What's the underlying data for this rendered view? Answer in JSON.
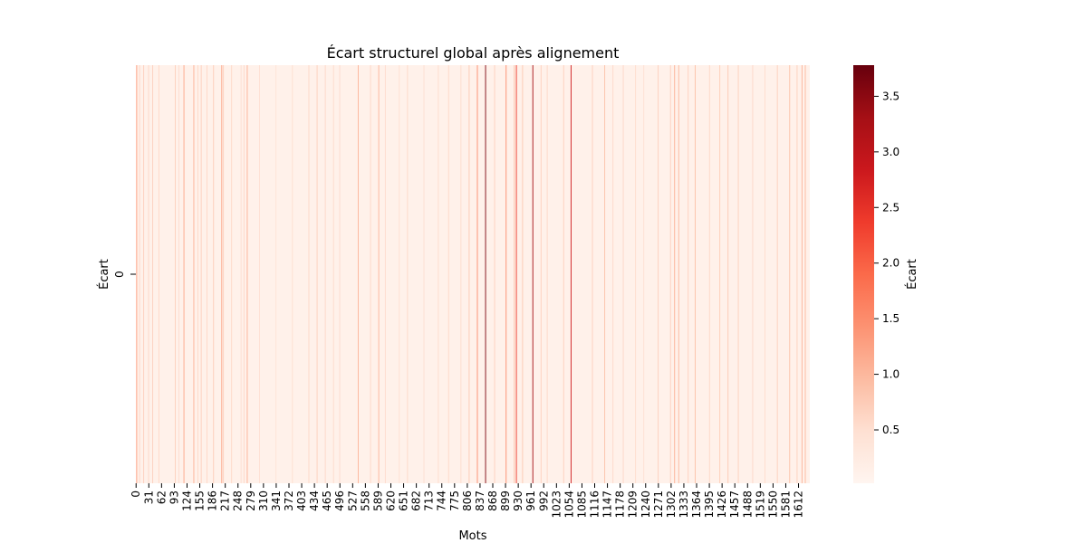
{
  "chart_data": {
    "type": "heatmap",
    "title": "Écart structurel global après alignement",
    "xlabel": "Mots",
    "ylabel": "Écart",
    "y_categories": [
      "0"
    ],
    "n_columns": 1640,
    "x_tick_labels": [
      "0",
      "31",
      "62",
      "93",
      "124",
      "155",
      "186",
      "217",
      "248",
      "279",
      "310",
      "341",
      "372",
      "403",
      "434",
      "465",
      "496",
      "527",
      "558",
      "589",
      "620",
      "651",
      "682",
      "713",
      "744",
      "775",
      "806",
      "837",
      "868",
      "899",
      "930",
      "961",
      "992",
      "1023",
      "1054",
      "1085",
      "1116",
      "1147",
      "1178",
      "1209",
      "1240",
      "1271",
      "1302",
      "1333",
      "1364",
      "1395",
      "1426",
      "1457",
      "1488",
      "1519",
      "1550",
      "1581",
      "1612"
    ],
    "colormap": "Reds",
    "colorbar": {
      "label": "Écart",
      "range": [
        0.02,
        3.78
      ],
      "ticks": [
        "0.5",
        "1.0",
        "1.5",
        "2.0",
        "2.5",
        "3.0",
        "3.5"
      ]
    },
    "baseline_value": 0.12,
    "highlighted_columns": [
      {
        "index": 1,
        "value": 1.3
      },
      {
        "index": 8,
        "value": 0.6
      },
      {
        "index": 18,
        "value": 0.7
      },
      {
        "index": 30,
        "value": 0.6
      },
      {
        "index": 40,
        "value": 0.7
      },
      {
        "index": 55,
        "value": 0.6
      },
      {
        "index": 95,
        "value": 0.7
      },
      {
        "index": 104,
        "value": 0.55
      },
      {
        "index": 116,
        "value": 1.2
      },
      {
        "index": 140,
        "value": 1.1
      },
      {
        "index": 150,
        "value": 0.6
      },
      {
        "index": 158,
        "value": 0.7
      },
      {
        "index": 172,
        "value": 0.6
      },
      {
        "index": 188,
        "value": 0.75
      },
      {
        "index": 208,
        "value": 1.25
      },
      {
        "index": 212,
        "value": 0.7
      },
      {
        "index": 232,
        "value": 0.6
      },
      {
        "index": 255,
        "value": 0.5
      },
      {
        "index": 262,
        "value": 0.6
      },
      {
        "index": 270,
        "value": 1.1
      },
      {
        "index": 300,
        "value": 0.5
      },
      {
        "index": 340,
        "value": 0.45
      },
      {
        "index": 380,
        "value": 0.5
      },
      {
        "index": 420,
        "value": 0.6
      },
      {
        "index": 440,
        "value": 0.7
      },
      {
        "index": 460,
        "value": 0.6
      },
      {
        "index": 480,
        "value": 0.55
      },
      {
        "index": 495,
        "value": 0.55
      },
      {
        "index": 540,
        "value": 1.05
      },
      {
        "index": 570,
        "value": 0.6
      },
      {
        "index": 590,
        "value": 1.05
      },
      {
        "index": 606,
        "value": 0.55
      },
      {
        "index": 640,
        "value": 0.5
      },
      {
        "index": 660,
        "value": 0.6
      },
      {
        "index": 700,
        "value": 0.5
      },
      {
        "index": 735,
        "value": 0.55
      },
      {
        "index": 760,
        "value": 0.6
      },
      {
        "index": 790,
        "value": 0.55
      },
      {
        "index": 810,
        "value": 0.8
      },
      {
        "index": 830,
        "value": 1.5
      },
      {
        "index": 850,
        "value": 3.6
      },
      {
        "index": 872,
        "value": 0.7
      },
      {
        "index": 900,
        "value": 1.5
      },
      {
        "index": 920,
        "value": 0.9
      },
      {
        "index": 925,
        "value": 2.4
      },
      {
        "index": 940,
        "value": 0.8
      },
      {
        "index": 965,
        "value": 3.3
      },
      {
        "index": 985,
        "value": 0.7
      },
      {
        "index": 1000,
        "value": 0.6
      },
      {
        "index": 1040,
        "value": 0.7
      },
      {
        "index": 1058,
        "value": 2.8
      },
      {
        "index": 1110,
        "value": 0.7
      },
      {
        "index": 1140,
        "value": 0.9
      },
      {
        "index": 1160,
        "value": 0.6
      },
      {
        "index": 1185,
        "value": 0.6
      },
      {
        "index": 1215,
        "value": 0.55
      },
      {
        "index": 1235,
        "value": 0.5
      },
      {
        "index": 1270,
        "value": 0.7
      },
      {
        "index": 1300,
        "value": 0.7
      },
      {
        "index": 1310,
        "value": 1.1
      },
      {
        "index": 1320,
        "value": 1.0
      },
      {
        "index": 1343,
        "value": 0.7
      },
      {
        "index": 1360,
        "value": 0.9
      },
      {
        "index": 1395,
        "value": 0.6
      },
      {
        "index": 1420,
        "value": 0.75
      },
      {
        "index": 1440,
        "value": 0.8
      },
      {
        "index": 1465,
        "value": 0.7
      },
      {
        "index": 1500,
        "value": 0.6
      },
      {
        "index": 1530,
        "value": 0.55
      },
      {
        "index": 1560,
        "value": 0.7
      },
      {
        "index": 1590,
        "value": 0.9
      },
      {
        "index": 1608,
        "value": 0.7
      },
      {
        "index": 1620,
        "value": 1.05
      },
      {
        "index": 1628,
        "value": 1.0
      }
    ]
  }
}
